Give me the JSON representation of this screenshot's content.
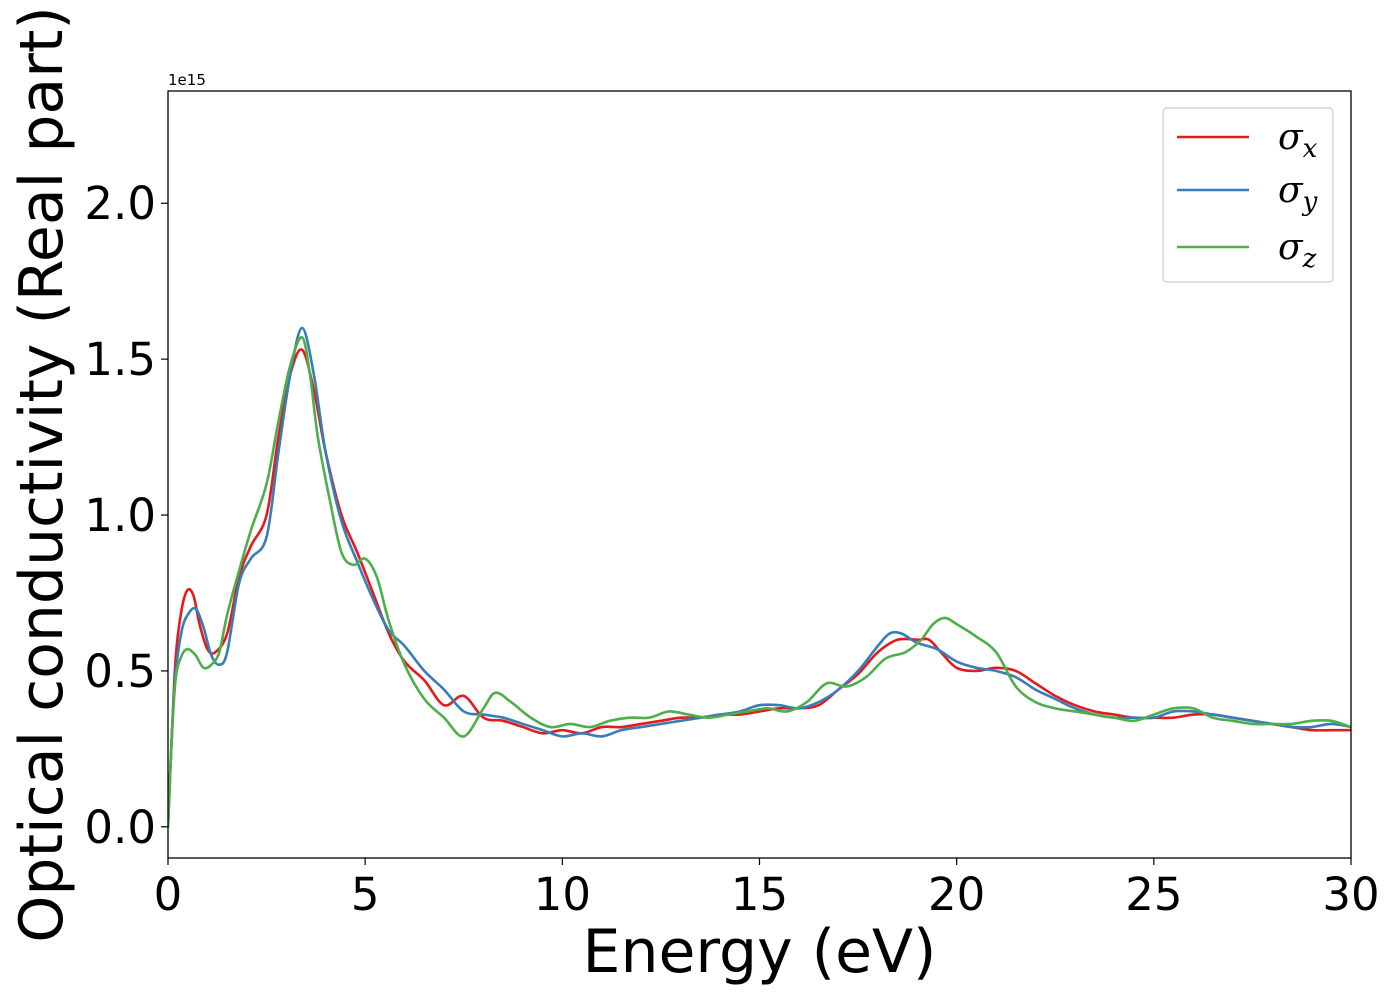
{
  "chart_data": {
    "type": "line",
    "xlabel": "Energy (eV)",
    "ylabel": "Optical conductivity (Real part)",
    "y_offset_label": "1e15",
    "xlim": [
      0,
      30
    ],
    "ylim": [
      -0.1,
      2.36
    ],
    "x_ticks": [
      0,
      5,
      10,
      15,
      20,
      25,
      30
    ],
    "x_tick_labels": [
      "0",
      "5",
      "10",
      "15",
      "20",
      "25",
      "30"
    ],
    "y_ticks": [
      0.0,
      0.5,
      1.0,
      1.5,
      2.0
    ],
    "y_tick_labels": [
      "0.0",
      "0.5",
      "1.0",
      "1.5",
      "2.0"
    ],
    "grid": false,
    "legend_position": "top-right",
    "series": [
      {
        "name": "σx",
        "color": "#e41a1c",
        "x": [
          0,
          0.1,
          0.2,
          0.35,
          0.5,
          0.65,
          0.8,
          1.0,
          1.2,
          1.5,
          1.8,
          2.1,
          2.5,
          2.8,
          3.1,
          3.4,
          3.7,
          4.0,
          4.4,
          4.8,
          5.2,
          5.6,
          6.0,
          6.5,
          7.0,
          7.5,
          8.0,
          8.5,
          9.0,
          9.5,
          10.0,
          10.5,
          11.0,
          11.5,
          12.0,
          12.5,
          13.0,
          13.5,
          14.0,
          14.5,
          15.0,
          15.5,
          16.0,
          16.5,
          17.0,
          17.5,
          18.0,
          18.5,
          19.0,
          19.3,
          19.6,
          20.0,
          20.5,
          21.0,
          21.5,
          22.0,
          22.5,
          23.0,
          23.5,
          24.0,
          24.5,
          25.0,
          25.5,
          26.0,
          26.5,
          27.0,
          27.5,
          28.0,
          28.5,
          29.0,
          29.5,
          30.0
        ],
        "y": [
          0.0,
          0.3,
          0.55,
          0.7,
          0.76,
          0.74,
          0.65,
          0.57,
          0.56,
          0.62,
          0.8,
          0.9,
          1.0,
          1.25,
          1.45,
          1.53,
          1.4,
          1.2,
          1.0,
          0.88,
          0.75,
          0.62,
          0.53,
          0.47,
          0.39,
          0.42,
          0.35,
          0.34,
          0.32,
          0.3,
          0.31,
          0.3,
          0.32,
          0.32,
          0.33,
          0.34,
          0.35,
          0.35,
          0.36,
          0.36,
          0.37,
          0.38,
          0.38,
          0.39,
          0.44,
          0.49,
          0.56,
          0.6,
          0.6,
          0.6,
          0.56,
          0.51,
          0.5,
          0.51,
          0.5,
          0.46,
          0.42,
          0.39,
          0.37,
          0.36,
          0.35,
          0.35,
          0.35,
          0.36,
          0.36,
          0.35,
          0.34,
          0.33,
          0.32,
          0.31,
          0.31,
          0.31
        ]
      },
      {
        "name": "σy",
        "color": "#377eb8",
        "x": [
          0,
          0.1,
          0.2,
          0.35,
          0.5,
          0.7,
          0.9,
          1.1,
          1.3,
          1.5,
          1.8,
          2.1,
          2.5,
          2.8,
          3.1,
          3.4,
          3.7,
          4.0,
          4.4,
          4.8,
          5.2,
          5.6,
          6.0,
          6.5,
          7.0,
          7.5,
          8.0,
          8.5,
          9.0,
          9.5,
          10.0,
          10.5,
          11.0,
          11.5,
          12.0,
          12.5,
          13.0,
          13.5,
          14.0,
          14.5,
          15.0,
          15.5,
          16.0,
          16.5,
          17.0,
          17.5,
          18.0,
          18.3,
          18.6,
          19.0,
          19.5,
          20.0,
          20.5,
          21.0,
          21.5,
          22.0,
          22.5,
          23.0,
          23.5,
          24.0,
          24.5,
          25.0,
          25.5,
          26.0,
          26.5,
          27.0,
          27.5,
          28.0,
          28.5,
          29.0,
          29.5,
          30.0
        ],
        "y": [
          0.0,
          0.3,
          0.5,
          0.63,
          0.68,
          0.7,
          0.64,
          0.55,
          0.52,
          0.56,
          0.78,
          0.86,
          0.93,
          1.2,
          1.45,
          1.6,
          1.45,
          1.2,
          0.98,
          0.85,
          0.73,
          0.63,
          0.58,
          0.5,
          0.44,
          0.37,
          0.36,
          0.35,
          0.33,
          0.31,
          0.29,
          0.3,
          0.29,
          0.31,
          0.32,
          0.33,
          0.34,
          0.35,
          0.36,
          0.37,
          0.39,
          0.39,
          0.38,
          0.4,
          0.44,
          0.5,
          0.58,
          0.62,
          0.62,
          0.59,
          0.57,
          0.53,
          0.51,
          0.5,
          0.48,
          0.44,
          0.41,
          0.38,
          0.36,
          0.35,
          0.35,
          0.35,
          0.37,
          0.37,
          0.36,
          0.35,
          0.34,
          0.33,
          0.32,
          0.32,
          0.33,
          0.32
        ]
      },
      {
        "name": "σz",
        "color": "#4daf4a",
        "x": [
          0,
          0.1,
          0.2,
          0.35,
          0.5,
          0.7,
          0.9,
          1.1,
          1.3,
          1.5,
          1.8,
          2.1,
          2.5,
          2.8,
          3.1,
          3.4,
          3.6,
          3.8,
          4.1,
          4.4,
          4.7,
          5.0,
          5.3,
          5.6,
          6.0,
          6.5,
          7.0,
          7.5,
          8.0,
          8.3,
          8.7,
          9.2,
          9.7,
          10.2,
          10.7,
          11.2,
          11.7,
          12.2,
          12.7,
          13.2,
          13.7,
          14.2,
          14.7,
          15.2,
          15.7,
          16.2,
          16.7,
          17.2,
          17.7,
          18.2,
          18.7,
          19.1,
          19.4,
          19.7,
          20.0,
          20.5,
          21.0,
          21.5,
          22.0,
          22.5,
          23.0,
          23.5,
          24.0,
          24.5,
          25.0,
          25.5,
          26.0,
          26.5,
          27.0,
          27.5,
          28.0,
          28.5,
          29.0,
          29.5,
          30.0
        ],
        "y": [
          0.0,
          0.3,
          0.48,
          0.55,
          0.57,
          0.55,
          0.51,
          0.52,
          0.56,
          0.68,
          0.82,
          0.95,
          1.1,
          1.3,
          1.48,
          1.57,
          1.45,
          1.25,
          1.05,
          0.88,
          0.84,
          0.86,
          0.8,
          0.66,
          0.52,
          0.41,
          0.35,
          0.29,
          0.38,
          0.43,
          0.4,
          0.35,
          0.32,
          0.33,
          0.32,
          0.34,
          0.35,
          0.35,
          0.37,
          0.36,
          0.35,
          0.36,
          0.37,
          0.38,
          0.37,
          0.4,
          0.46,
          0.45,
          0.48,
          0.54,
          0.56,
          0.6,
          0.65,
          0.67,
          0.65,
          0.61,
          0.56,
          0.45,
          0.4,
          0.38,
          0.37,
          0.36,
          0.35,
          0.34,
          0.36,
          0.38,
          0.38,
          0.35,
          0.34,
          0.33,
          0.33,
          0.33,
          0.34,
          0.34,
          0.32
        ]
      }
    ]
  },
  "legend": [
    {
      "base": "σ",
      "sub": "x"
    },
    {
      "base": "σ",
      "sub": "y"
    },
    {
      "base": "σ",
      "sub": "z"
    }
  ]
}
